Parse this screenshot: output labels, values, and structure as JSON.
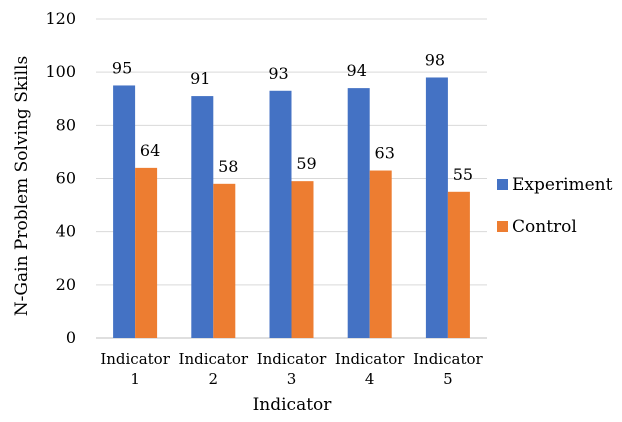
{
  "chart_data": {
    "type": "bar",
    "title": "",
    "xlabel": "Indicator",
    "ylabel": "N-Gain Problem Solving Skills",
    "categories": [
      [
        "Indicator",
        "1"
      ],
      [
        "Indicator",
        "2"
      ],
      [
        "Indicator",
        "3"
      ],
      [
        "Indicator",
        "4"
      ],
      [
        "Indicator",
        "5"
      ]
    ],
    "series": [
      {
        "name": "Experiment",
        "color": "#4472C4",
        "values": [
          95,
          91,
          93,
          94,
          98
        ]
      },
      {
        "name": "Control",
        "color": "#ED7D31",
        "values": [
          64,
          58,
          59,
          63,
          55
        ]
      }
    ],
    "ylim": [
      0,
      120
    ],
    "yticks": [
      0,
      20,
      40,
      60,
      80,
      100,
      120
    ],
    "grid": true,
    "legend_position": "right",
    "data_labels": true
  }
}
